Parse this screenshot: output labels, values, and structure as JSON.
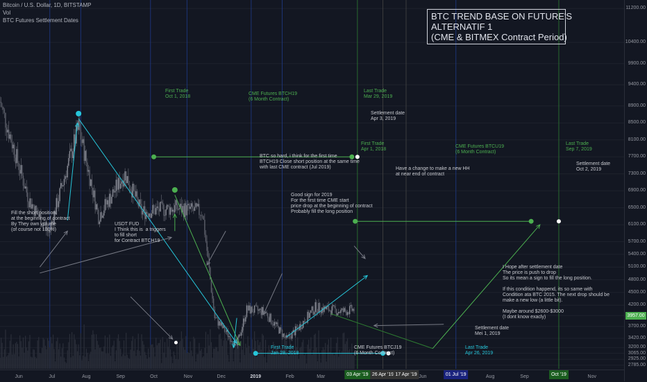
{
  "header": {
    "symbol_line": "Bitcoin / U.S. Dollar, 1D, BITSTAMP",
    "indicator_vol": "Vol",
    "indicator_dates": "BTC Futures Settlement Dates"
  },
  "title_box": {
    "line1": "BTC TREND BASE ON FUTURE'S",
    "line2": "ALTERNATIF 1",
    "line3": "(CME & BITMEX Contract Period)"
  },
  "annotations": {
    "btch19_first": "First Trade\nOct 1, 2018",
    "btch19_name": "CME Futures BTCH19\n(6 Month Contract)",
    "btch19_last": "Last Trade\nMar 29, 2019",
    "btch19_settle": "Settlement date\nApr 3, 2019",
    "btcu19_first": "First Trade\nApr 1, 2018",
    "btcu19_name": "CME Futures BTCU19\n(6 Month Contract)",
    "btcu19_last": "Last Trade\nSep 7, 2019",
    "btcu19_settle": "Settlement date\nOct 2, 2019",
    "btcj19_first": "First Trade\nJan 28, 2018",
    "btcj19_name": "CME Futures BTCJ19\n(6 Month Contract)",
    "btcj19_last": "Last Trade\nApr 26, 2019",
    "btcj19_settle": "Settlement date\nMei 1, 2019",
    "short_fill": "Fill the short position.\nat the beginning of contract\nBy They own volume\n(of course not 100%)",
    "usdt_fud": "USDT FUD\nI Think this is  a triggers\nto fill short\nfor Contract BTCH19",
    "btc_hard": "BTC so hard, i think for the first time\nBTCH19 Close short position at the same time\nwith last CME contract (Jul 2019)",
    "good_sign": "Good sign for 2019\nFor the first time CME start\nprice drop at the beginning of contract\nProbably fill the long position",
    "new_hh": "Have a change to make a new HH\nat near end of contract",
    "hope": "I Hope after settlement date\nThe price is push to drop\nSo its mean a sign to fill the long position.\n\nIf this condition happend, its so same with\nCondition ata BTC 2015. The next drop should be\nmake a new low (a little bit).\n\nMaybe around $2600-$3000\n(I dont know exacly)"
  },
  "price_scale": {
    "ticks": [
      "11200.00",
      "10400.00",
      "9900.00",
      "9400.00",
      "8900.00",
      "8500.00",
      "8100.00",
      "7700.00",
      "7300.00",
      "6900.00",
      "6500.00",
      "6100.00",
      "5700.00",
      "5400.00",
      "5100.00",
      "4800.00",
      "4500.00",
      "4200.00",
      "3957.00",
      "3700.00",
      "3420.00",
      "3200.00",
      "3065.00",
      "2925.00",
      "2785.00"
    ],
    "current_price": "3957.00"
  },
  "time_scale": {
    "labels": [
      "Jun",
      "Jul",
      "Aug",
      "Sep",
      "Oct",
      "Nov",
      "Dec",
      "2019",
      "Feb",
      "Mar",
      "Apr",
      "May",
      "Jun",
      "Jul",
      "Aug",
      "Sep",
      "Oct",
      "Nov"
    ],
    "badges": [
      "03 Apr '19",
      "26 Apr '19",
      "17 Apr '19",
      "01 Jul '19",
      "Oct '19"
    ]
  },
  "colors": {
    "background": "#131722",
    "btch19": "#4caf50",
    "btcj19": "#26c6da",
    "btcu19": "#4caf50",
    "candles": "#787b86"
  },
  "chart_data": {
    "type": "candlestick",
    "title": "Bitcoin / U.S. Dollar, 1D, BITSTAMP",
    "x_range": [
      "2018-05-15",
      "2019-11-30"
    ],
    "y_range": [
      2700,
      11400
    ],
    "price_path": [
      {
        "date": "2018-05-15",
        "close": 9000
      },
      {
        "date": "2018-06-10",
        "close": 6700
      },
      {
        "date": "2018-06-28",
        "close": 5900
      },
      {
        "date": "2018-07-25",
        "close": 8400
      },
      {
        "date": "2018-08-12",
        "close": 6300
      },
      {
        "date": "2018-09-05",
        "close": 7300
      },
      {
        "date": "2018-09-20",
        "close": 6400
      },
      {
        "date": "2018-10-20",
        "close": 6500
      },
      {
        "date": "2018-11-14",
        "close": 6400
      },
      {
        "date": "2018-11-25",
        "close": 3900
      },
      {
        "date": "2018-12-15",
        "close": 3250
      },
      {
        "date": "2018-12-24",
        "close": 4100
      },
      {
        "date": "2019-01-09",
        "close": 4050
      },
      {
        "date": "2019-01-29",
        "close": 3400
      },
      {
        "date": "2019-02-08",
        "close": 3650
      },
      {
        "date": "2019-02-24",
        "close": 4150
      },
      {
        "date": "2019-03-20",
        "close": 4050
      },
      {
        "date": "2019-03-31",
        "close": 4100
      }
    ],
    "futures_contracts": [
      {
        "name": "CME Futures BTCH19",
        "first_trade": "Oct 1, 2018",
        "last_trade": "Mar 29, 2019",
        "settlement": "Apr 3, 2019",
        "price_level": 7700
      },
      {
        "name": "CME Futures BTCU19",
        "first_trade": "Apr 1, 2018",
        "last_trade": "Sep 7, 2019",
        "settlement": "Oct 2, 2019",
        "price_level": 6180
      },
      {
        "name": "CME Futures BTCJ19",
        "first_trade": "Jan 28, 2018",
        "last_trade": "Apr 26, 2019",
        "settlement": "Mei 1, 2019",
        "price_level": 3065
      }
    ]
  }
}
